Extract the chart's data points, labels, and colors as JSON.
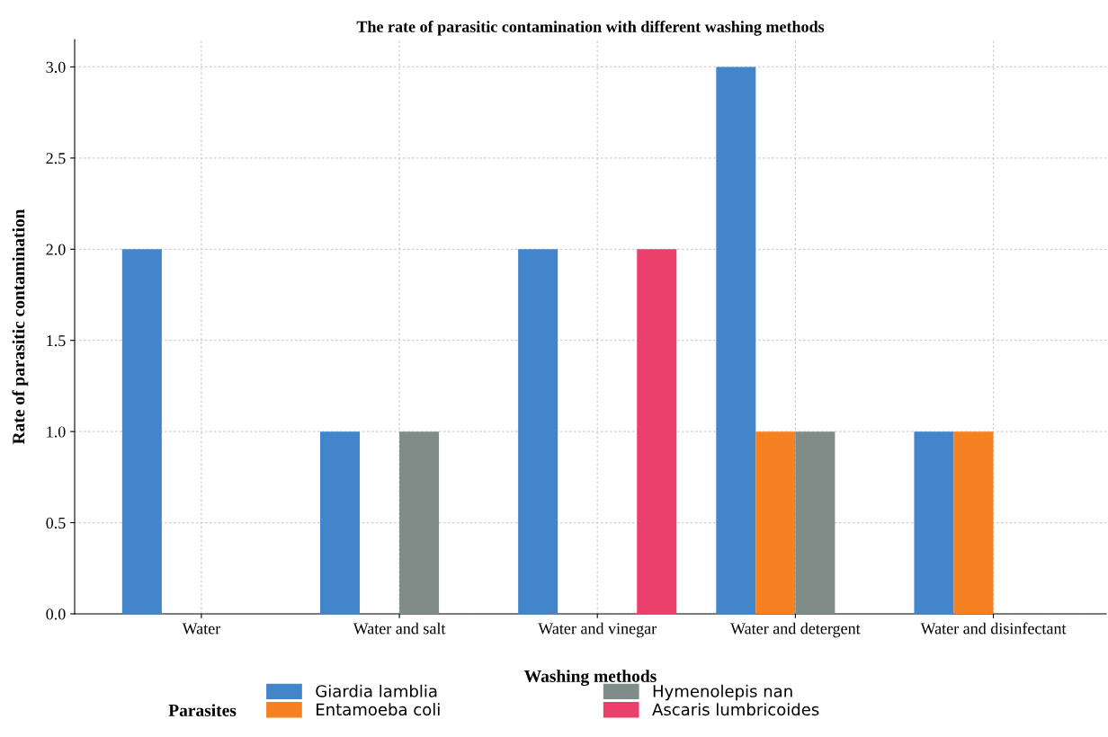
{
  "chart_data": {
    "type": "bar",
    "title": "The rate of parasitic contamination with different washing methods",
    "xlabel": "Washing methods",
    "ylabel": "Rate of parasitic contamination",
    "legend_title": "Parasites",
    "categories": [
      "Water",
      "Water and salt",
      "Water and vinegar",
      "Water and detergent",
      "Water and disinfectant"
    ],
    "series": [
      {
        "name": "Giardia lamblia",
        "color": "#4285cb",
        "values": [
          2,
          1,
          2,
          3,
          1
        ]
      },
      {
        "name": "Entamoeba coli",
        "color": "#f68121",
        "values": [
          null,
          null,
          null,
          1,
          1
        ]
      },
      {
        "name": "Hymenolepis nan",
        "color": "#7f8c87",
        "values": [
          null,
          1,
          null,
          1,
          null
        ]
      },
      {
        "name": "Ascaris lumbricoides",
        "color": "#eb3f6c",
        "values": [
          null,
          null,
          2,
          null,
          null
        ]
      }
    ],
    "ylim": [
      0,
      3.15
    ],
    "yticks": [
      {
        "value": 0,
        "label": "0.0"
      },
      {
        "value": 0.5,
        "label": "0.5"
      },
      {
        "value": 1,
        "label": "1.0"
      },
      {
        "value": 1.5,
        "label": "1.5"
      },
      {
        "value": 2,
        "label": "2.0"
      },
      {
        "value": 2.5,
        "label": "2.5"
      },
      {
        "value": 3,
        "label": "3.0"
      }
    ],
    "grid": true,
    "legend": "bottom"
  }
}
